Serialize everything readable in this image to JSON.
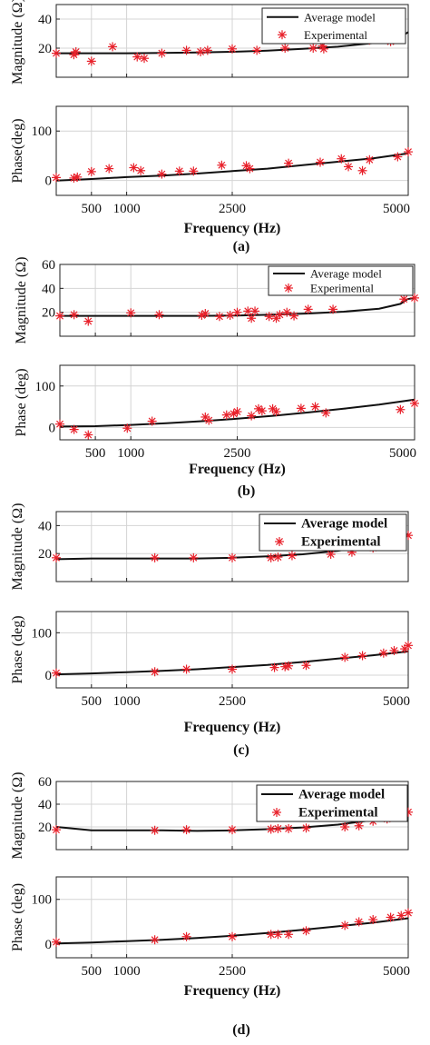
{
  "figure": {
    "panel_labels": [
      "(a)",
      "(b)",
      "(c)",
      "(d)"
    ]
  },
  "colors": {
    "model": "#111111",
    "experimental": "#e8202a",
    "grid": "#d4d4d4",
    "axis": "#222222"
  },
  "chart_data": [
    {
      "id": "a",
      "type": "line",
      "subplots": [
        {
          "ylabel": "Magnitude (Ω)",
          "ylim": [
            0,
            50
          ],
          "yticks": [
            20,
            40
          ],
          "xlim": [
            0,
            5000
          ],
          "xticks": [
            500,
            1000,
            2500,
            5000
          ],
          "grid": true,
          "legend": {
            "position": "top-right",
            "entries": [
              "Average model",
              "Experimental"
            ]
          },
          "series": [
            {
              "name": "Average model",
              "style": "line",
              "x": [
                0,
                500,
                1000,
                1500,
                2000,
                2500,
                3000,
                3500,
                4000,
                4500,
                4850,
                4950,
                5000
              ],
              "y": [
                16.5,
                16.5,
                16.5,
                16.7,
                17,
                17.5,
                18.3,
                19.5,
                21,
                23.5,
                27,
                29.5,
                31
              ]
            },
            {
              "name": "Experimental",
              "style": "marker",
              "x": [
                0,
                250,
                280,
                500,
                800,
                1150,
                1250,
                1500,
                1850,
                2050,
                2150,
                2500,
                2850,
                3250,
                3650,
                3780,
                3800,
                4300,
                4450,
                4550,
                4750
              ],
              "y": [
                16.5,
                15.5,
                17.5,
                11,
                21,
                14,
                13,
                16.5,
                18.5,
                17.5,
                18.5,
                19.5,
                18.5,
                20,
                20,
                21.5,
                19.5,
                26.5,
                25.5,
                27,
                24.5
              ]
            }
          ]
        },
        {
          "ylabel": "Phase(deg)",
          "ylim": [
            -30,
            150
          ],
          "yticks": [
            0,
            100
          ],
          "xlim": [
            0,
            5000
          ],
          "xticks": [
            500,
            1000,
            2500,
            5000
          ],
          "xticklabels": [
            "500",
            "1000",
            "2500",
            "5000"
          ],
          "xlabel": "Frequency (Hz)",
          "grid": true,
          "series": [
            {
              "name": "Average model",
              "style": "line",
              "x": [
                0,
                500,
                1000,
                1500,
                2000,
                2500,
                3000,
                3500,
                4000,
                4500,
                5000
              ],
              "y": [
                0,
                3,
                7,
                10,
                14,
                19,
                24,
                31,
                38,
                45,
                55
              ]
            },
            {
              "name": "Experimental",
              "style": "marker",
              "x": [
                0,
                250,
                300,
                500,
                750,
                1100,
                1200,
                1500,
                1750,
                1950,
                2350,
                2700,
                2750,
                3300,
                3750,
                4050,
                4150,
                4350,
                4450,
                4850,
                5000
              ],
              "y": [
                6,
                5,
                7,
                18,
                24,
                26,
                20,
                13,
                19,
                19,
                31,
                30,
                24,
                35,
                37,
                44,
                28,
                20,
                42,
                48,
                58
              ]
            }
          ]
        }
      ]
    },
    {
      "id": "b",
      "type": "line",
      "subplots": [
        {
          "ylabel": "Magnitude (Ω)",
          "ylim": [
            0,
            60
          ],
          "yticks": [
            20,
            40,
            60
          ],
          "yticklabels_shown": [
            "20",
            "60"
          ],
          "xlim": [
            0,
            5000
          ],
          "xticks": [
            500,
            1000,
            2500,
            5000
          ],
          "grid": true,
          "legend": {
            "position": "top-right",
            "entries": [
              "Average model",
              "Experimental"
            ]
          },
          "series": [
            {
              "name": "Average model",
              "style": "line",
              "x": [
                0,
                500,
                1000,
                1500,
                2000,
                2500,
                3000,
                3500,
                4000,
                4500,
                4800,
                4900,
                5000
              ],
              "y": [
                17,
                17,
                17,
                17,
                17,
                17.3,
                18,
                19,
                20.5,
                23,
                27,
                31,
                32
              ]
            },
            {
              "name": "Experimental",
              "style": "marker",
              "x": [
                0,
                200,
                400,
                1000,
                1400,
                2000,
                2050,
                2250,
                2400,
                2500,
                2650,
                2700,
                2750,
                2950,
                3050,
                3100,
                3200,
                3300,
                3500,
                3850,
                4850,
                5000
              ],
              "y": [
                17,
                18,
                12.5,
                19.5,
                18,
                17.5,
                19,
                16.5,
                17.5,
                20,
                21,
                15,
                21,
                16.5,
                15,
                18,
                20,
                17,
                22.5,
                22.5,
                31,
                32
              ]
            }
          ]
        },
        {
          "ylabel": "Phase (deg)",
          "ylim": [
            -30,
            150
          ],
          "yticks": [
            0,
            100
          ],
          "xlim": [
            0,
            5000
          ],
          "xticks": [
            500,
            1000,
            2500,
            5000
          ],
          "xticklabels": [
            "500",
            "1000",
            "2500",
            "5000"
          ],
          "xlabel": "Frequency (Hz)",
          "grid": true,
          "series": [
            {
              "name": "Average model",
              "style": "line",
              "x": [
                0,
                500,
                1000,
                1500,
                2000,
                2500,
                3000,
                3500,
                4000,
                4500,
                5000
              ],
              "y": [
                2,
                3,
                6,
                10,
                15,
                21,
                28,
                36,
                45,
                55,
                67
              ]
            },
            {
              "name": "Experimental",
              "style": "marker",
              "x": [
                0,
                200,
                400,
                950,
                1300,
                2050,
                2100,
                2350,
                2450,
                2500,
                2700,
                2800,
                2850,
                3000,
                3050,
                3400,
                3600,
                3750,
                4800,
                5000
              ],
              "y": [
                8,
                -5,
                -18,
                -2,
                15,
                25,
                17,
                30,
                33,
                38,
                28,
                45,
                40,
                45,
                38,
                46,
                50,
                35,
                43,
                58
              ]
            }
          ]
        }
      ]
    },
    {
      "id": "c",
      "type": "line",
      "subplots": [
        {
          "ylabel": "Magnitude (Ω)",
          "ylim": [
            0,
            50
          ],
          "yticks": [
            20,
            40
          ],
          "xlim": [
            0,
            5000
          ],
          "xticks": [
            500,
            1000,
            2500,
            5000
          ],
          "grid": true,
          "legend": {
            "position": "top-right",
            "entries": [
              "Average model",
              "Experimental"
            ]
          },
          "series": [
            {
              "name": "Average model",
              "style": "line",
              "x": [
                0,
                500,
                1000,
                1500,
                2000,
                2500,
                3000,
                3500,
                4000,
                4500,
                5000
              ],
              "y": [
                16,
                16.5,
                16.5,
                16.5,
                16.5,
                17,
                18,
                19.5,
                22,
                26,
                34
              ]
            },
            {
              "name": "Experimental",
              "style": "marker",
              "x": [
                0,
                1400,
                1950,
                2500,
                3050,
                3150,
                3350,
                3900,
                4200,
                4500,
                4700,
                4850,
                5000
              ],
              "y": [
                17,
                17,
                17,
                17,
                17,
                17.5,
                18.5,
                19.5,
                21,
                24,
                27,
                29.5,
                33
              ]
            }
          ]
        },
        {
          "ylabel": "Phase (deg)",
          "ylim": [
            -30,
            150
          ],
          "yticks": [
            0,
            100
          ],
          "xlim": [
            0,
            5000
          ],
          "xticks": [
            500,
            1000,
            2500,
            5000
          ],
          "xticklabels": [
            "500",
            "1000",
            "2500",
            "5000"
          ],
          "xlabel": "Frequency (Hz)",
          "grid": true,
          "series": [
            {
              "name": "Average model",
              "style": "line",
              "x": [
                0,
                500,
                1000,
                1500,
                2000,
                2500,
                3000,
                3500,
                4000,
                4500,
                5000
              ],
              "y": [
                2,
                4,
                7,
                10,
                14,
                19,
                24,
                31,
                39,
                47,
                56
              ]
            },
            {
              "name": "Experimental",
              "style": "marker",
              "x": [
                0,
                1400,
                1850,
                2500,
                3100,
                3250,
                3300,
                3550,
                4100,
                4350,
                4650,
                4800,
                4950,
                5000
              ],
              "y": [
                5,
                8,
                14,
                14,
                18,
                20,
                22,
                23,
                42,
                46,
                52,
                58,
                62,
                70
              ]
            }
          ]
        }
      ]
    },
    {
      "id": "d",
      "type": "line",
      "subplots": [
        {
          "ylabel": "Magnitude (Ω)",
          "ylim": [
            0,
            60
          ],
          "yticks": [
            20,
            40,
            60
          ],
          "xlim": [
            0,
            5000
          ],
          "xticks": [
            500,
            1000,
            2500,
            5000
          ],
          "grid": true,
          "legend": {
            "position": "top-right",
            "entries": [
              "Average model",
              "Experimental"
            ]
          },
          "series": [
            {
              "name": "Average model",
              "style": "line",
              "x": [
                0,
                500,
                1000,
                1500,
                2000,
                2500,
                3000,
                3500,
                4000,
                4500,
                5000
              ],
              "y": [
                20,
                17,
                17,
                17,
                16.5,
                17,
                18,
                19.5,
                22,
                26,
                34
              ]
            },
            {
              "name": "Experimental",
              "style": "marker",
              "x": [
                0,
                1400,
                1850,
                2500,
                3050,
                3150,
                3300,
                3550,
                4100,
                4300,
                4500,
                4700,
                4800,
                5000
              ],
              "y": [
                17.5,
                17,
                17.5,
                17.5,
                18,
                18.5,
                18.5,
                19,
                20,
                21,
                25,
                27,
                30,
                33
              ]
            }
          ]
        },
        {
          "ylabel": "Phase (deg)",
          "ylim": [
            -30,
            150
          ],
          "yticks": [
            0,
            100
          ],
          "xlim": [
            0,
            5000
          ],
          "xticks": [
            500,
            1000,
            2500,
            5000
          ],
          "xticklabels": [
            "500",
            "1000",
            "2500",
            "5000"
          ],
          "xlabel": "Frequency (Hz)",
          "grid": true,
          "series": [
            {
              "name": "Average model",
              "style": "line",
              "x": [
                0,
                500,
                1000,
                1500,
                2000,
                2500,
                3000,
                3500,
                4000,
                4500,
                5000
              ],
              "y": [
                2,
                4,
                7,
                10,
                14,
                19,
                25,
                32,
                40,
                48,
                58
              ]
            },
            {
              "name": "Experimental",
              "style": "marker",
              "x": [
                0,
                1400,
                1850,
                2500,
                3050,
                3150,
                3300,
                3550,
                4100,
                4300,
                4500,
                4750,
                4900,
                5000
              ],
              "y": [
                5,
                10,
                17,
                17,
                22,
                22,
                22,
                30,
                42,
                50,
                55,
                60,
                64,
                70
              ]
            }
          ]
        }
      ]
    }
  ]
}
